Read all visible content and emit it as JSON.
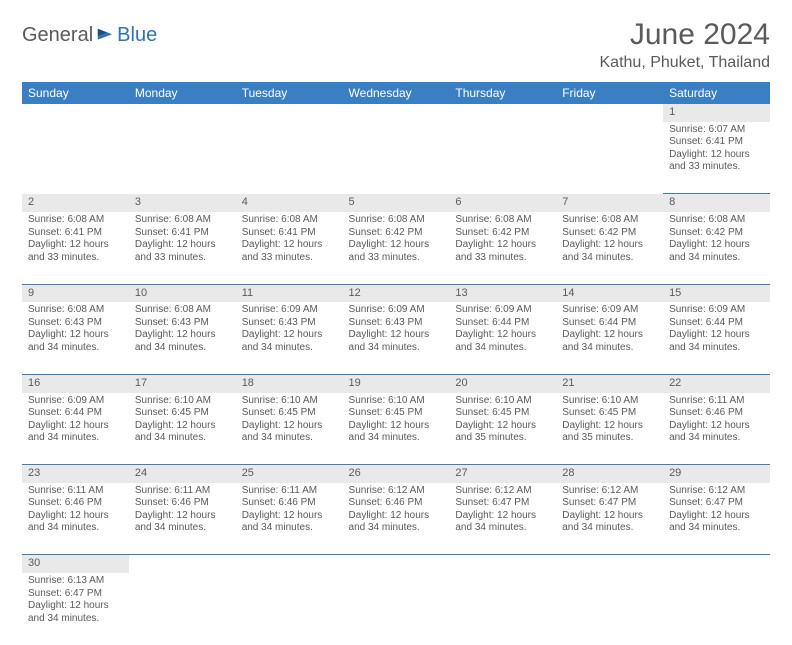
{
  "header": {
    "logo_part1": "General",
    "logo_part2": "Blue",
    "month_title": "June 2024",
    "location": "Kathu, Phuket, Thailand"
  },
  "colors": {
    "header_bg": "#3a7fc4",
    "header_text": "#ffffff",
    "daynum_bg": "#e9e9e9",
    "text": "#5a5a5a",
    "row_border": "#3a7fc4",
    "logo_accent": "#2e74b5"
  },
  "weekdays": [
    "Sunday",
    "Monday",
    "Tuesday",
    "Wednesday",
    "Thursday",
    "Friday",
    "Saturday"
  ],
  "weeks": [
    [
      null,
      null,
      null,
      null,
      null,
      null,
      {
        "n": "1",
        "sr": "Sunrise: 6:07 AM",
        "ss": "Sunset: 6:41 PM",
        "d1": "Daylight: 12 hours",
        "d2": "and 33 minutes."
      }
    ],
    [
      {
        "n": "2",
        "sr": "Sunrise: 6:08 AM",
        "ss": "Sunset: 6:41 PM",
        "d1": "Daylight: 12 hours",
        "d2": "and 33 minutes."
      },
      {
        "n": "3",
        "sr": "Sunrise: 6:08 AM",
        "ss": "Sunset: 6:41 PM",
        "d1": "Daylight: 12 hours",
        "d2": "and 33 minutes."
      },
      {
        "n": "4",
        "sr": "Sunrise: 6:08 AM",
        "ss": "Sunset: 6:41 PM",
        "d1": "Daylight: 12 hours",
        "d2": "and 33 minutes."
      },
      {
        "n": "5",
        "sr": "Sunrise: 6:08 AM",
        "ss": "Sunset: 6:42 PM",
        "d1": "Daylight: 12 hours",
        "d2": "and 33 minutes."
      },
      {
        "n": "6",
        "sr": "Sunrise: 6:08 AM",
        "ss": "Sunset: 6:42 PM",
        "d1": "Daylight: 12 hours",
        "d2": "and 33 minutes."
      },
      {
        "n": "7",
        "sr": "Sunrise: 6:08 AM",
        "ss": "Sunset: 6:42 PM",
        "d1": "Daylight: 12 hours",
        "d2": "and 34 minutes."
      },
      {
        "n": "8",
        "sr": "Sunrise: 6:08 AM",
        "ss": "Sunset: 6:42 PM",
        "d1": "Daylight: 12 hours",
        "d2": "and 34 minutes."
      }
    ],
    [
      {
        "n": "9",
        "sr": "Sunrise: 6:08 AM",
        "ss": "Sunset: 6:43 PM",
        "d1": "Daylight: 12 hours",
        "d2": "and 34 minutes."
      },
      {
        "n": "10",
        "sr": "Sunrise: 6:08 AM",
        "ss": "Sunset: 6:43 PM",
        "d1": "Daylight: 12 hours",
        "d2": "and 34 minutes."
      },
      {
        "n": "11",
        "sr": "Sunrise: 6:09 AM",
        "ss": "Sunset: 6:43 PM",
        "d1": "Daylight: 12 hours",
        "d2": "and 34 minutes."
      },
      {
        "n": "12",
        "sr": "Sunrise: 6:09 AM",
        "ss": "Sunset: 6:43 PM",
        "d1": "Daylight: 12 hours",
        "d2": "and 34 minutes."
      },
      {
        "n": "13",
        "sr": "Sunrise: 6:09 AM",
        "ss": "Sunset: 6:44 PM",
        "d1": "Daylight: 12 hours",
        "d2": "and 34 minutes."
      },
      {
        "n": "14",
        "sr": "Sunrise: 6:09 AM",
        "ss": "Sunset: 6:44 PM",
        "d1": "Daylight: 12 hours",
        "d2": "and 34 minutes."
      },
      {
        "n": "15",
        "sr": "Sunrise: 6:09 AM",
        "ss": "Sunset: 6:44 PM",
        "d1": "Daylight: 12 hours",
        "d2": "and 34 minutes."
      }
    ],
    [
      {
        "n": "16",
        "sr": "Sunrise: 6:09 AM",
        "ss": "Sunset: 6:44 PM",
        "d1": "Daylight: 12 hours",
        "d2": "and 34 minutes."
      },
      {
        "n": "17",
        "sr": "Sunrise: 6:10 AM",
        "ss": "Sunset: 6:45 PM",
        "d1": "Daylight: 12 hours",
        "d2": "and 34 minutes."
      },
      {
        "n": "18",
        "sr": "Sunrise: 6:10 AM",
        "ss": "Sunset: 6:45 PM",
        "d1": "Daylight: 12 hours",
        "d2": "and 34 minutes."
      },
      {
        "n": "19",
        "sr": "Sunrise: 6:10 AM",
        "ss": "Sunset: 6:45 PM",
        "d1": "Daylight: 12 hours",
        "d2": "and 34 minutes."
      },
      {
        "n": "20",
        "sr": "Sunrise: 6:10 AM",
        "ss": "Sunset: 6:45 PM",
        "d1": "Daylight: 12 hours",
        "d2": "and 35 minutes."
      },
      {
        "n": "21",
        "sr": "Sunrise: 6:10 AM",
        "ss": "Sunset: 6:45 PM",
        "d1": "Daylight: 12 hours",
        "d2": "and 35 minutes."
      },
      {
        "n": "22",
        "sr": "Sunrise: 6:11 AM",
        "ss": "Sunset: 6:46 PM",
        "d1": "Daylight: 12 hours",
        "d2": "and 34 minutes."
      }
    ],
    [
      {
        "n": "23",
        "sr": "Sunrise: 6:11 AM",
        "ss": "Sunset: 6:46 PM",
        "d1": "Daylight: 12 hours",
        "d2": "and 34 minutes."
      },
      {
        "n": "24",
        "sr": "Sunrise: 6:11 AM",
        "ss": "Sunset: 6:46 PM",
        "d1": "Daylight: 12 hours",
        "d2": "and 34 minutes."
      },
      {
        "n": "25",
        "sr": "Sunrise: 6:11 AM",
        "ss": "Sunset: 6:46 PM",
        "d1": "Daylight: 12 hours",
        "d2": "and 34 minutes."
      },
      {
        "n": "26",
        "sr": "Sunrise: 6:12 AM",
        "ss": "Sunset: 6:46 PM",
        "d1": "Daylight: 12 hours",
        "d2": "and 34 minutes."
      },
      {
        "n": "27",
        "sr": "Sunrise: 6:12 AM",
        "ss": "Sunset: 6:47 PM",
        "d1": "Daylight: 12 hours",
        "d2": "and 34 minutes."
      },
      {
        "n": "28",
        "sr": "Sunrise: 6:12 AM",
        "ss": "Sunset: 6:47 PM",
        "d1": "Daylight: 12 hours",
        "d2": "and 34 minutes."
      },
      {
        "n": "29",
        "sr": "Sunrise: 6:12 AM",
        "ss": "Sunset: 6:47 PM",
        "d1": "Daylight: 12 hours",
        "d2": "and 34 minutes."
      }
    ],
    [
      {
        "n": "30",
        "sr": "Sunrise: 6:13 AM",
        "ss": "Sunset: 6:47 PM",
        "d1": "Daylight: 12 hours",
        "d2": "and 34 minutes."
      },
      null,
      null,
      null,
      null,
      null,
      null
    ]
  ]
}
